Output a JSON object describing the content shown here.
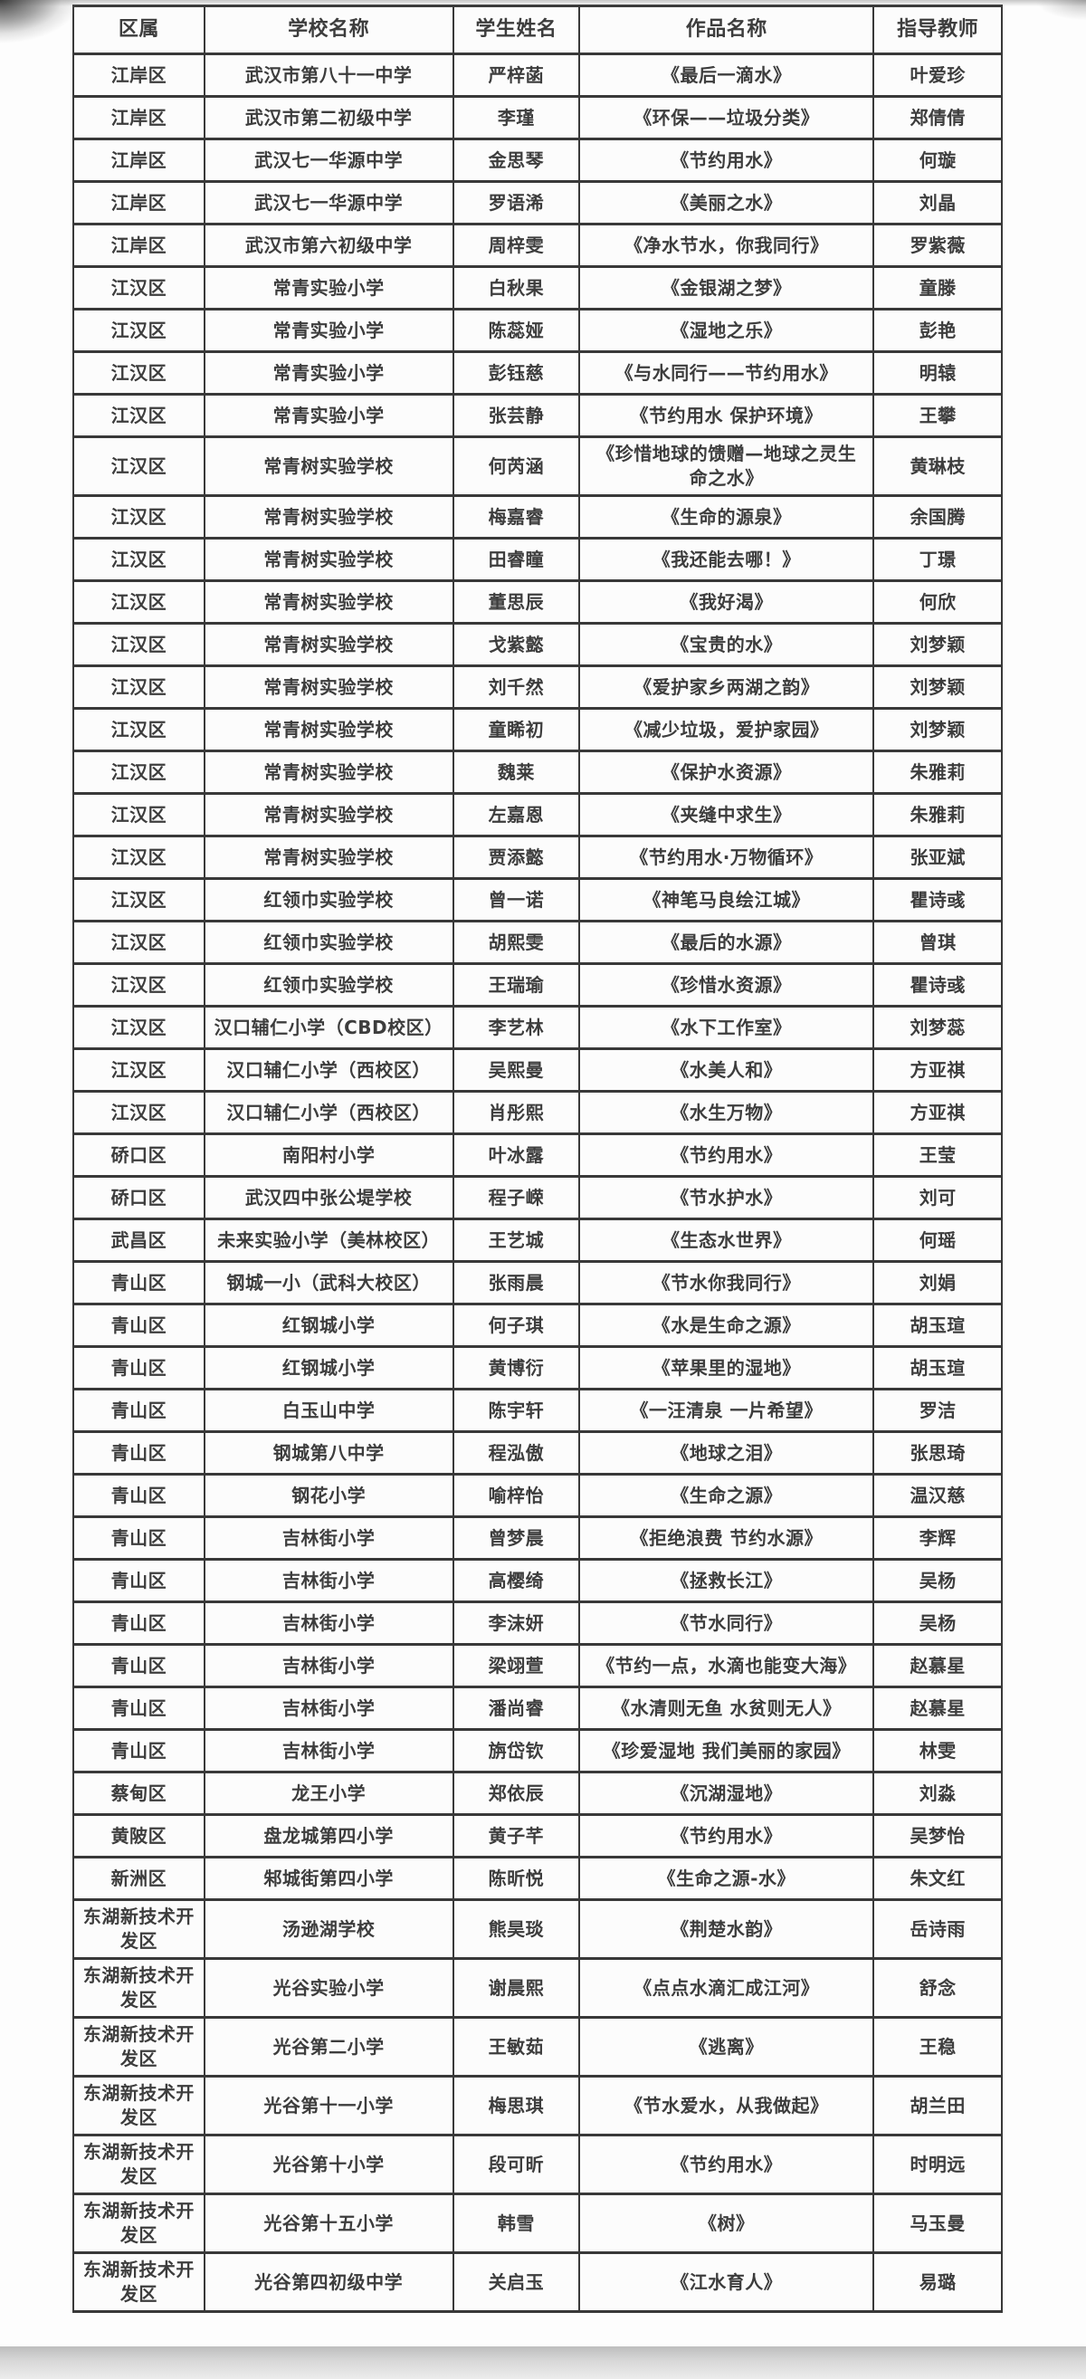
{
  "table": {
    "headers": [
      "区属",
      "学校名称",
      "学生姓名",
      "作品名称",
      "指导教师"
    ],
    "rows": [
      [
        "江岸区",
        "武汉市第八十一中学",
        "严梓菡",
        "《最后一滴水》",
        "叶爱珍"
      ],
      [
        "江岸区",
        "武汉市第二初级中学",
        "李瑾",
        "《环保——垃圾分类》",
        "郑倩倩"
      ],
      [
        "江岸区",
        "武汉七一华源中学",
        "金思琴",
        "《节约用水》",
        "何璇"
      ],
      [
        "江岸区",
        "武汉七一华源中学",
        "罗语浠",
        "《美丽之水》",
        "刘晶"
      ],
      [
        "江岸区",
        "武汉市第六初级中学",
        "周梓雯",
        "《净水节水，你我同行》",
        "罗紫薇"
      ],
      [
        "江汉区",
        "常青实验小学",
        "白秋果",
        "《金银湖之梦》",
        "童滕"
      ],
      [
        "江汉区",
        "常青实验小学",
        "陈蕊娅",
        "《湿地之乐》",
        "彭艳"
      ],
      [
        "江汉区",
        "常青实验小学",
        "彭钰慈",
        "《与水同行——节约用水》",
        "明辕"
      ],
      [
        "江汉区",
        "常青实验小学",
        "张芸静",
        "《节约用水 保护环境》",
        "王攀"
      ],
      [
        "江汉区",
        "常青树实验学校",
        "何芮涵",
        "《珍惜地球的馈赠—地球之灵生命之水》",
        "黄琳枝"
      ],
      [
        "江汉区",
        "常青树实验学校",
        "梅嘉睿",
        "《生命的源泉》",
        "余国腾"
      ],
      [
        "江汉区",
        "常青树实验学校",
        "田睿瞳",
        "《我还能去哪！》",
        "丁璟"
      ],
      [
        "江汉区",
        "常青树实验学校",
        "董思辰",
        "《我好渴》",
        "何欣"
      ],
      [
        "江汉区",
        "常青树实验学校",
        "戈紫懿",
        "《宝贵的水》",
        "刘梦颖"
      ],
      [
        "江汉区",
        "常青树实验学校",
        "刘千然",
        "《爱护家乡两湖之韵》",
        "刘梦颖"
      ],
      [
        "江汉区",
        "常青树实验学校",
        "童睎初",
        "《减少垃圾，爱护家园》",
        "刘梦颖"
      ],
      [
        "江汉区",
        "常青树实验学校",
        "魏莱",
        "《保护水资源》",
        "朱雅莉"
      ],
      [
        "江汉区",
        "常青树实验学校",
        "左嘉恩",
        "《夹缝中求生》",
        "朱雅莉"
      ],
      [
        "江汉区",
        "常青树实验学校",
        "贾添懿",
        "《节约用水·万物循环》",
        "张亚斌"
      ],
      [
        "江汉区",
        "红领巾实验学校",
        "曾一诺",
        "《神笔马良绘江城》",
        "瞿诗彧"
      ],
      [
        "江汉区",
        "红领巾实验学校",
        "胡熙雯",
        "《最后的水源》",
        "曾琪"
      ],
      [
        "江汉区",
        "红领巾实验学校",
        "王瑞瑜",
        "《珍惜水资源》",
        "瞿诗彧"
      ],
      [
        "江汉区",
        "汉口辅仁小学（CBD校区）",
        "李艺林",
        "《水下工作室》",
        "刘梦蕊"
      ],
      [
        "江汉区",
        "汉口辅仁小学（西校区）",
        "吴熙曼",
        "《水美人和》",
        "方亚祺"
      ],
      [
        "江汉区",
        "汉口辅仁小学（西校区）",
        "肖彤熙",
        "《水生万物》",
        "方亚祺"
      ],
      [
        "硚口区",
        "南阳村小学",
        "叶冰露",
        "《节约用水》",
        "王莹"
      ],
      [
        "硚口区",
        "武汉四中张公堤学校",
        "程子嵘",
        "《节水护水》",
        "刘可"
      ],
      [
        "武昌区",
        "未来实验小学（美林校区）",
        "王艺城",
        "《生态水世界》",
        "何瑶"
      ],
      [
        "青山区",
        "钢城一小（武科大校区）",
        "张雨晨",
        "《节水你我同行》",
        "刘娟"
      ],
      [
        "青山区",
        "红钢城小学",
        "何子琪",
        "《水是生命之源》",
        "胡玉瑄"
      ],
      [
        "青山区",
        "红钢城小学",
        "黄博衍",
        "《苹果里的湿地》",
        "胡玉瑄"
      ],
      [
        "青山区",
        "白玉山中学",
        "陈宇轩",
        "《一汪清泉 一片希望》",
        "罗洁"
      ],
      [
        "青山区",
        "钢城第八中学",
        "程泓傲",
        "《地球之泪》",
        "张思琦"
      ],
      [
        "青山区",
        "钢花小学",
        "喻梓怡",
        "《生命之源》",
        "温汉慈"
      ],
      [
        "青山区",
        "吉林街小学",
        "曾梦晨",
        "《拒绝浪费 节约水源》",
        "李辉"
      ],
      [
        "青山区",
        "吉林街小学",
        "高樱绮",
        "《拯救长江》",
        "吴杨"
      ],
      [
        "青山区",
        "吉林街小学",
        "李沫妍",
        "《节水同行》",
        "吴杨"
      ],
      [
        "青山区",
        "吉林街小学",
        "梁翊萱",
        "《节约一点，水滴也能变大海》",
        "赵慕星"
      ],
      [
        "青山区",
        "吉林街小学",
        "潘尚睿",
        "《水清则无鱼 水贫则无人》",
        "赵慕星"
      ],
      [
        "青山区",
        "吉林街小学",
        "旃岱钦",
        "《珍爱湿地 我们美丽的家园》",
        "林雯"
      ],
      [
        "蔡甸区",
        "龙王小学",
        "郑依辰",
        "《沉湖湿地》",
        "刘淼"
      ],
      [
        "黄陂区",
        "盘龙城第四小学",
        "黄子芊",
        "《节约用水》",
        "吴梦怡"
      ],
      [
        "新洲区",
        "邾城街第四小学",
        "陈昕悦",
        "《生命之源-水》",
        "朱文红"
      ],
      [
        "东湖新技术开发区",
        "汤逊湖学校",
        "熊昊琰",
        "《荆楚水韵》",
        "岳诗雨"
      ],
      [
        "东湖新技术开发区",
        "光谷实验小学",
        "谢晨熙",
        "《点点水滴汇成江河》",
        "舒念"
      ],
      [
        "东湖新技术开发区",
        "光谷第二小学",
        "王敏茹",
        "《逃离》",
        "王稳"
      ],
      [
        "东湖新技术开发区",
        "光谷第十一小学",
        "梅思琪",
        "《节水爱水，从我做起》",
        "胡兰田"
      ],
      [
        "东湖新技术开发区",
        "光谷第十小学",
        "段可昕",
        "《节约用水》",
        "时明远"
      ],
      [
        "东湖新技术开发区",
        "光谷第十五小学",
        "韩雪",
        "《树》",
        "马玉曼"
      ],
      [
        "东湖新技术开发区",
        "光谷第四初级中学",
        "关启玉",
        "《江水育人》",
        "易璐"
      ]
    ],
    "cell_names": [
      "district-cell",
      "school-cell",
      "student-name-cell",
      "work-title-cell",
      "teacher-cell"
    ]
  }
}
